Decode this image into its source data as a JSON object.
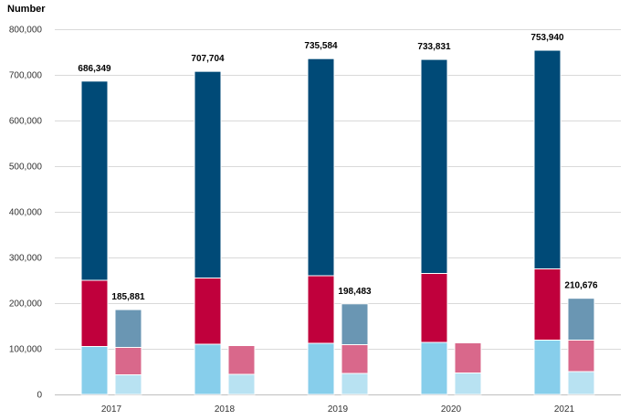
{
  "chart_data": {
    "type": "bar",
    "stacked": true,
    "ylabel": "Number",
    "ylim": [
      0,
      800000
    ],
    "yticks": [
      0,
      100000,
      200000,
      300000,
      400000,
      500000,
      600000,
      700000,
      800000
    ],
    "ytick_labels": [
      "0",
      "100,000",
      "200,000",
      "300,000",
      "400,000",
      "500,000",
      "600,000",
      "700,000",
      "800,000"
    ],
    "grid": true,
    "categories": [
      "2017",
      "2018",
      "2019",
      "2020",
      "2021"
    ],
    "groups": [
      {
        "segments": [
          {
            "values": [
              105000,
              110000,
              112000,
              114000,
              119000
            ],
            "color": "#87ceeb"
          },
          {
            "values": [
              145000,
              145000,
              148000,
              151000,
              156000
            ],
            "color": "#c0003c"
          },
          {
            "values": [
              436349,
              452704,
              475584,
              468831,
              478940
            ],
            "color": "#004a77"
          }
        ],
        "totals": [
          686349,
          707704,
          735584,
          733831,
          753940
        ],
        "total_labels": [
          "686,349",
          "707,704",
          "735,584",
          "733,831",
          "753,940"
        ]
      },
      {
        "segments": [
          {
            "values": [
              43000,
              44000,
              46000,
              47000,
              50000
            ],
            "color": "#b8e2f2"
          },
          {
            "values": [
              60000,
              63000,
              63000,
              66000,
              69000
            ],
            "color": "#d9688b"
          },
          {
            "values": [
              82881,
              null,
              89483,
              null,
              91676
            ],
            "color": "#6a96b3"
          }
        ],
        "totals": [
          185881,
          null,
          198483,
          null,
          210676
        ],
        "total_labels": [
          "185,881",
          "",
          "198,483",
          "",
          "210,676"
        ]
      }
    ]
  }
}
